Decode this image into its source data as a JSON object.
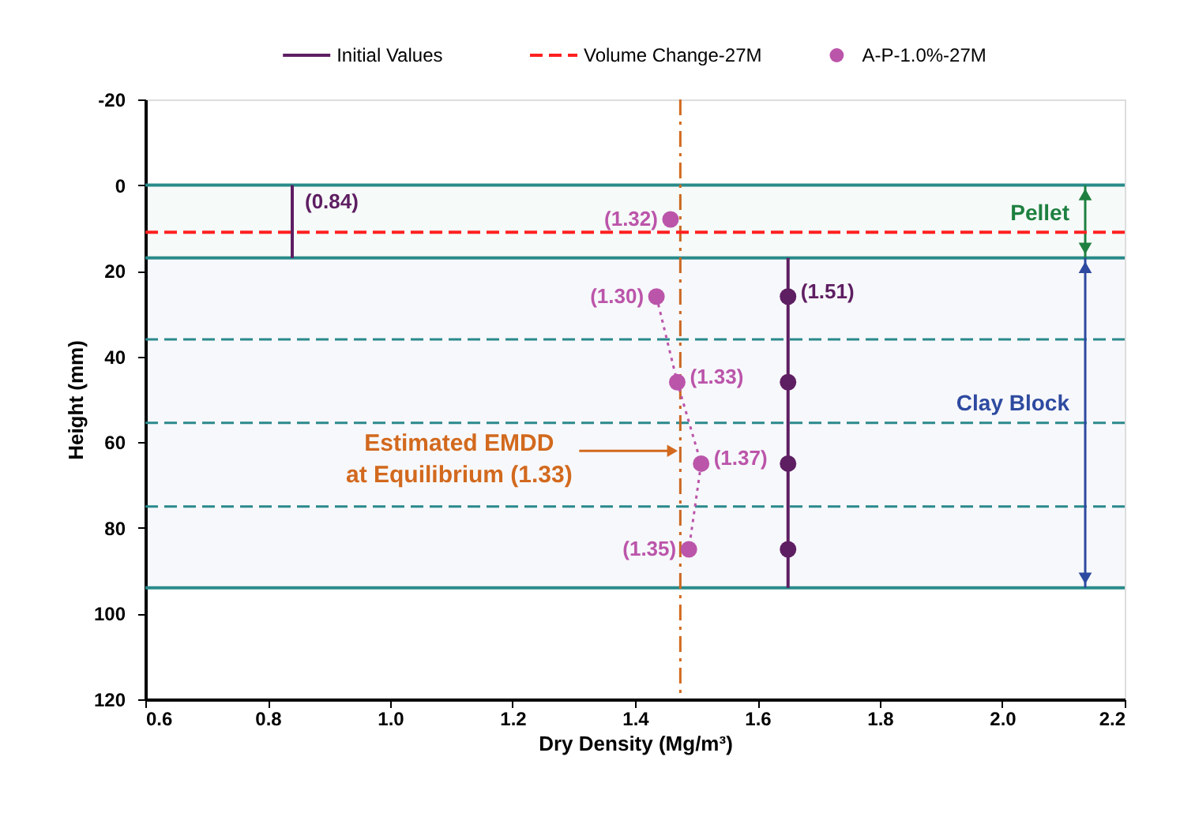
{
  "chart_data": {
    "type": "line",
    "xlabel": "Dry Density (Mg/m³)",
    "ylabel": "Height (mm)",
    "xlim": [
      0.6,
      2.2
    ],
    "xticks": [
      0.6,
      0.8,
      {
        "value": 1.0,
        "label": "1.0"
      },
      1.2,
      1.4,
      1.6,
      1.8,
      {
        "value": 2.0,
        "label": "2.0"
      },
      2.2
    ],
    "ylim": [
      120,
      -20
    ],
    "yticks": [
      -20,
      0,
      20,
      40,
      60,
      80,
      100,
      120
    ],
    "grid": false,
    "legend": "top",
    "series": [
      {
        "name": "Initial Values",
        "color": "#5e1e62",
        "marker": "none",
        "line_style": "solid",
        "x": [
          0.84,
          0.84
        ],
        "values": [
          0,
          17
        ]
      },
      {
        "color": "#5e1e62",
        "marker": "none",
        "line_style": "solid",
        "x": [
          1.65,
          1.65
        ],
        "values": [
          17,
          94
        ]
      },
      {
        "type": "scatter",
        "color": "#5e1e62",
        "marker": "circle",
        "x": [
          1.65,
          1.65,
          1.65,
          1.65
        ],
        "values": [
          26,
          46,
          65,
          85
        ]
      },
      {
        "name": "Volume Change-27M",
        "color": "#ff2020",
        "marker": "none",
        "line_style": "dashed",
        "x": [
          0.6,
          2.2
        ],
        "values": [
          11,
          11
        ]
      },
      {
        "name": "A-P-1.0%-27M",
        "type": "scatter",
        "color": "#bb55aa",
        "marker": "circle",
        "x": [
          1.458,
          1.435,
          1.469,
          1.508,
          1.488
        ],
        "values": [
          8,
          26,
          46,
          65,
          85
        ]
      },
      {
        "color": "#bb55aa",
        "marker": "none",
        "line_style": "dotted",
        "x": [
          1.435,
          1.469,
          1.508,
          1.488
        ],
        "values": [
          26,
          46,
          65,
          85
        ]
      }
    ],
    "ref_lines": [
      {
        "axis": "y",
        "value": 0,
        "color": "#2a8c8c",
        "line_style": "solid"
      },
      {
        "axis": "y",
        "value": 17,
        "color": "#2a8c8c",
        "line_style": "solid"
      },
      {
        "axis": "y",
        "value": 94,
        "color": "#2a8c8c",
        "line_style": "solid"
      },
      {
        "axis": "y",
        "value": 36,
        "color": "#2a8c8c",
        "line_style": "dashed"
      },
      {
        "axis": "y",
        "value": 55.5,
        "color": "#2a8c8c",
        "line_style": "dashed"
      },
      {
        "axis": "y",
        "value": 75,
        "color": "#2a8c8c",
        "line_style": "dashed"
      },
      {
        "axis": "x",
        "value": 1.474,
        "color": "#d2691e",
        "line_style": "dashed"
      }
    ],
    "bands": [
      {
        "axis": "y",
        "from": 0,
        "to": 17,
        "label": "Pellet",
        "color": "#1e8040"
      },
      {
        "axis": "y",
        "from": 17,
        "to": 94,
        "label": "Clay Block",
        "color": "#2e4aa0"
      }
    ],
    "annotations": [
      {
        "text": "(0.84)",
        "x": 0.84,
        "y": 5
      },
      {
        "text": "(1.51)",
        "x": 1.65,
        "y": 26
      },
      {
        "text": "(1.32)",
        "x": 1.458,
        "y": 8
      },
      {
        "text": "(1.30)",
        "x": 1.435,
        "y": 26
      },
      {
        "text": "(1.33)",
        "x": 1.469,
        "y": 46
      },
      {
        "text": "(1.37)",
        "x": 1.508,
        "y": 65
      },
      {
        "text": "(1.35)",
        "x": 1.488,
        "y": 85
      },
      {
        "text": "Estimated EMDD\nat Equilibrium (1.33)",
        "x": 1.474,
        "y": 62
      }
    ]
  }
}
